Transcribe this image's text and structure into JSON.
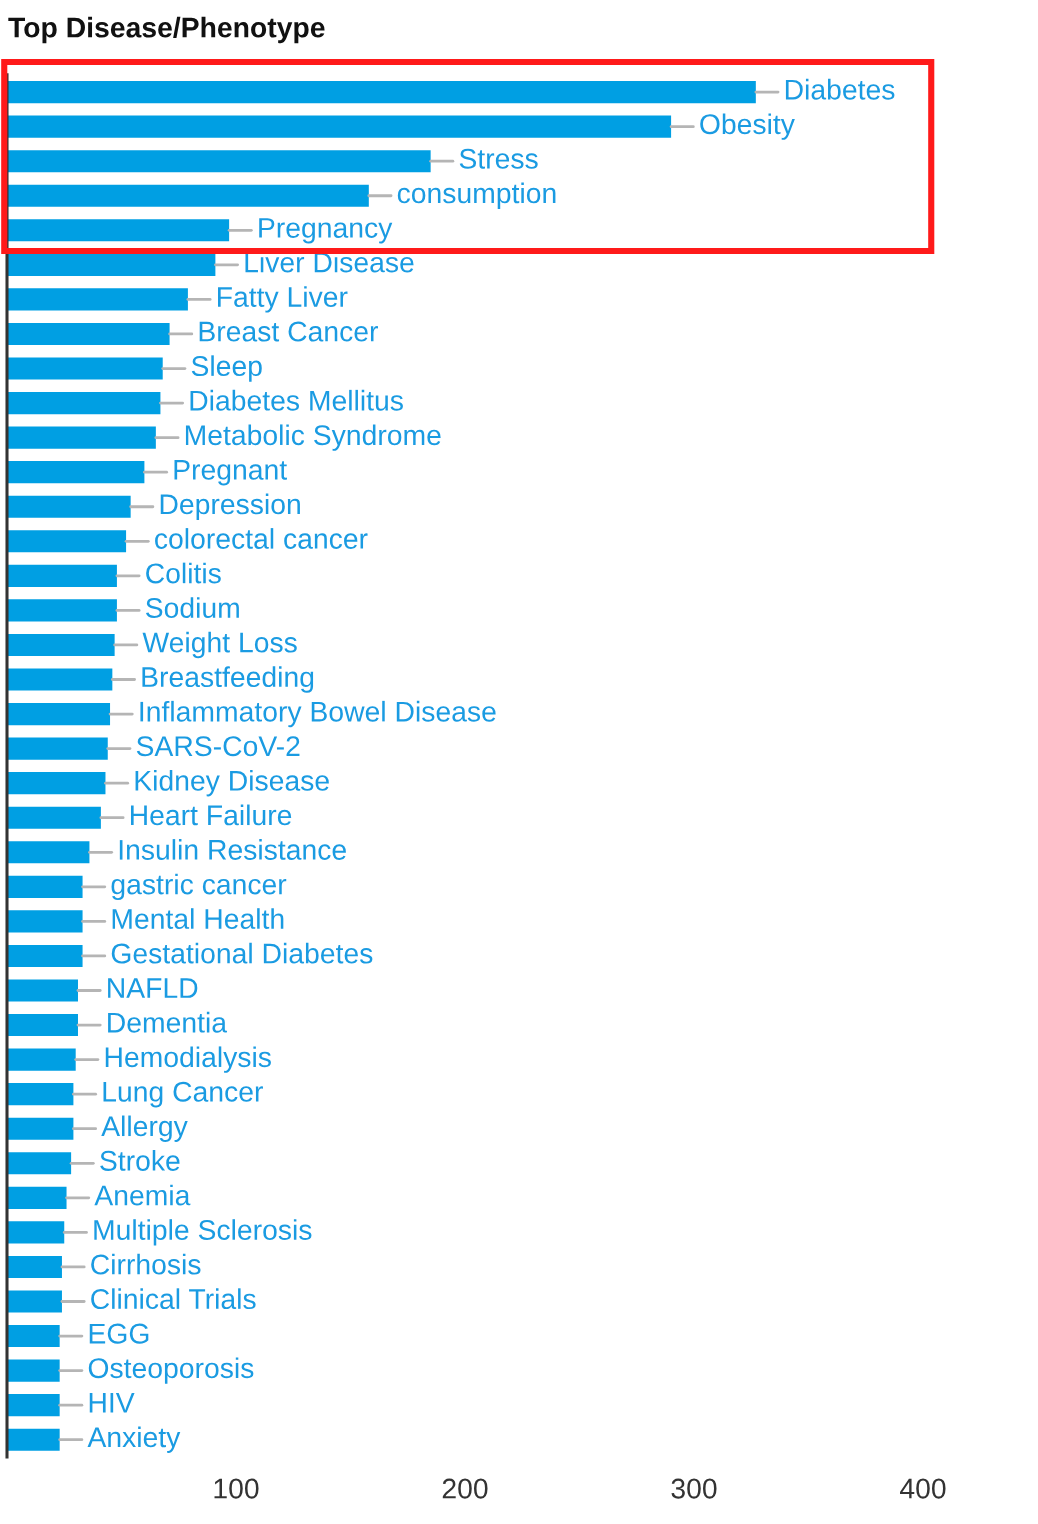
{
  "chart_data": {
    "type": "bar",
    "orientation": "horizontal",
    "title": "Top Disease/Phenotype",
    "categories": [
      "Diabetes",
      "Obesity",
      "Stress",
      "consumption",
      "Pregnancy",
      "Liver Disease",
      "Fatty Liver",
      "Breast Cancer",
      "Sleep",
      "Diabetes Mellitus",
      "Metabolic Syndrome",
      "Pregnant",
      "Depression",
      "colorectal cancer",
      "Colitis",
      "Sodium",
      "Weight Loss",
      "Breastfeeding",
      "Inflammatory Bowel Disease",
      "SARS-CoV-2",
      "Kidney Disease",
      "Heart Failure",
      "Insulin Resistance",
      "gastric cancer",
      "Mental Health",
      "Gestational Diabetes",
      "NAFLD",
      "Dementia",
      "Hemodialysis",
      "Lung Cancer",
      "Allergy",
      "Stroke",
      "Anemia",
      "Multiple Sclerosis",
      "Cirrhosis",
      "Clinical Trials",
      "EGG",
      "Osteoporosis",
      "HIV",
      "Anxiety"
    ],
    "values": [
      327,
      290,
      185,
      158,
      97,
      91,
      79,
      71,
      68,
      67,
      65,
      60,
      54,
      52,
      48,
      48,
      47,
      46,
      45,
      44,
      43,
      41,
      36,
      33,
      33,
      33,
      31,
      31,
      30,
      29,
      29,
      28,
      26,
      25,
      24,
      24,
      23,
      23,
      23,
      23
    ],
    "color": "#009fe3",
    "xlim": [
      0,
      400
    ],
    "xticks": [
      100,
      200,
      300,
      400
    ],
    "grid": false
  }
}
